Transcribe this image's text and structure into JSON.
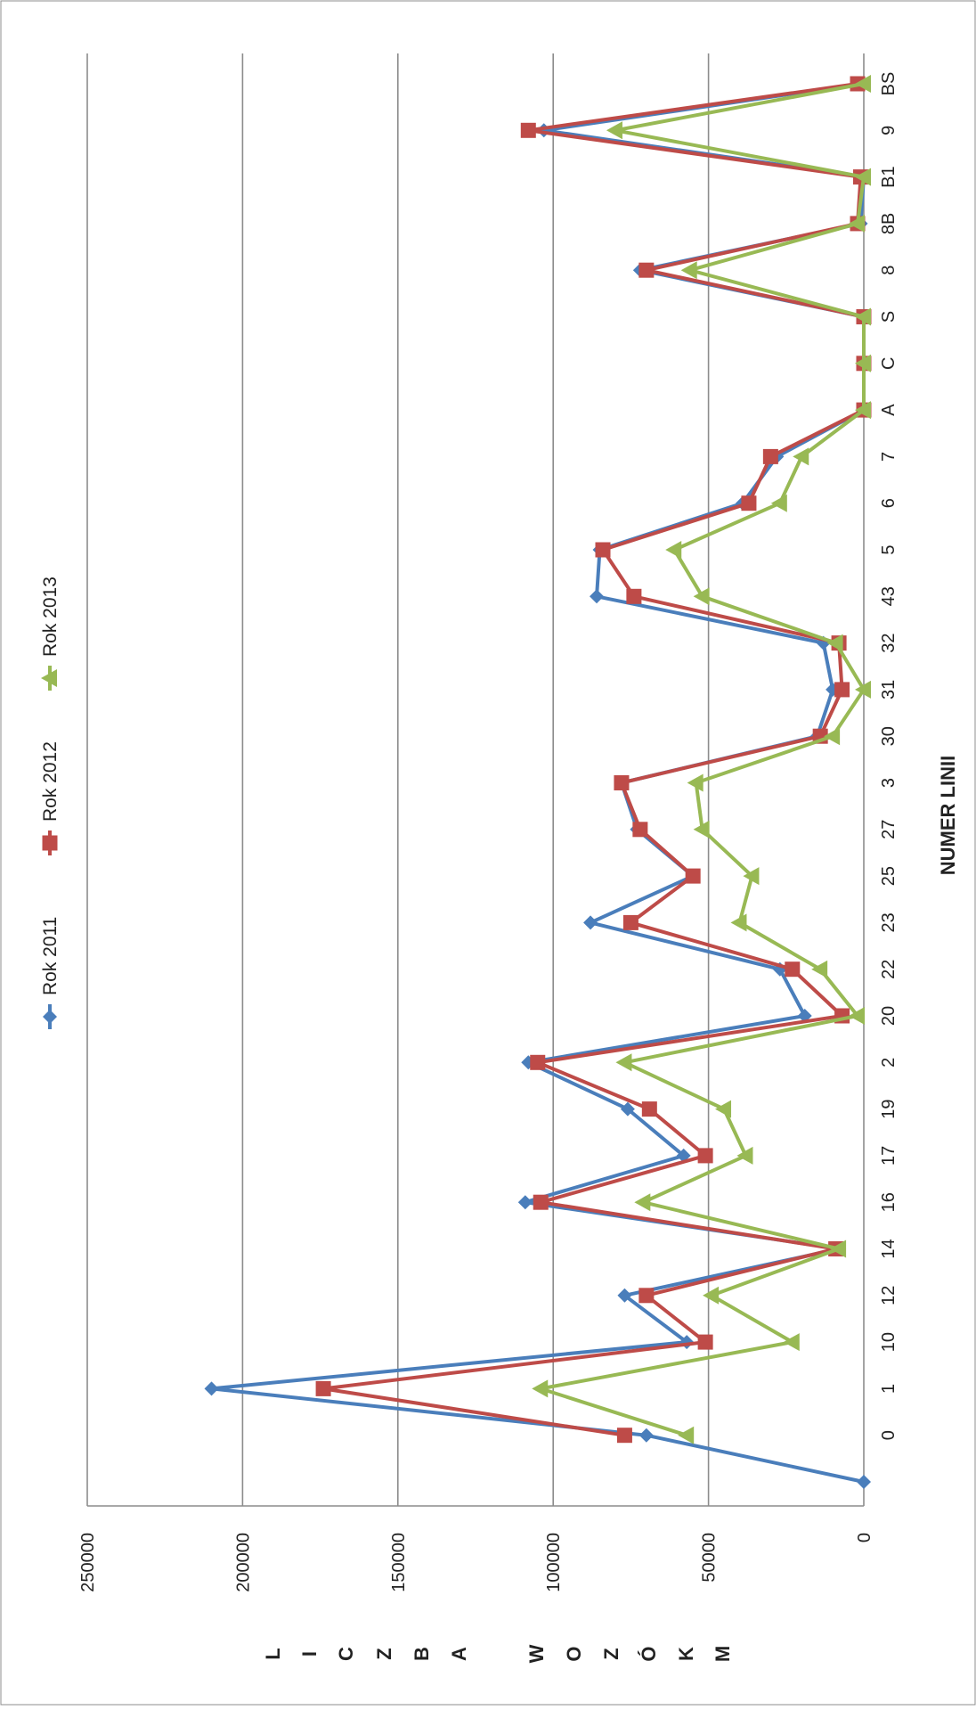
{
  "chart_data": {
    "type": "line",
    "orientation": "rotated-90-clockwise",
    "xlabel": "NUMER LINII",
    "ylabel_letters": [
      "L",
      "I",
      "C",
      "Z",
      "B",
      "A",
      "",
      "W",
      "O",
      "Z",
      "Ó",
      "K",
      "M"
    ],
    "ylim": [
      0,
      250000
    ],
    "yticks": [
      "0",
      "50000",
      "100000",
      "150000",
      "200000",
      "250000"
    ],
    "grid": true,
    "legend_position": "top",
    "categories": [
      "",
      "0",
      "1",
      "10",
      "12",
      "14",
      "16",
      "17",
      "19",
      "2",
      "20",
      "22",
      "23",
      "25",
      "27",
      "3",
      "30",
      "31",
      "32",
      "43",
      "5",
      "6",
      "7",
      "A",
      "C",
      "S",
      "8",
      "8B",
      "B1",
      "9",
      "BS"
    ],
    "series": [
      {
        "name": "Rok 2011",
        "color": "#4a7ebb",
        "marker": "diamond",
        "values": [
          0,
          70000,
          210000,
          57000,
          77000,
          8000,
          109000,
          58000,
          76000,
          108000,
          19000,
          27000,
          88000,
          55000,
          73000,
          78000,
          15000,
          10000,
          13000,
          86000,
          85000,
          39000,
          28000,
          0,
          0,
          0,
          72000,
          1000,
          0,
          103000,
          1000
        ]
      },
      {
        "name": "Rok 2012",
        "color": "#be4b48",
        "marker": "square",
        "values": [
          null,
          77000,
          174000,
          51000,
          70000,
          9000,
          104000,
          51000,
          69000,
          105000,
          7000,
          23000,
          75000,
          55000,
          72000,
          78000,
          14000,
          7000,
          8000,
          74000,
          84000,
          37000,
          30000,
          0,
          0,
          0,
          70000,
          2000,
          1000,
          108000,
          2000
        ]
      },
      {
        "name": "Rok 2013",
        "color": "#98b954",
        "marker": "triangle",
        "values": [
          null,
          57000,
          104000,
          23000,
          49000,
          8000,
          71000,
          38000,
          45000,
          77000,
          2000,
          14000,
          40000,
          36000,
          52000,
          54000,
          10000,
          0,
          9000,
          52000,
          61000,
          27000,
          20000,
          0,
          0,
          0,
          56000,
          2000,
          0,
          80000,
          0
        ]
      }
    ]
  }
}
